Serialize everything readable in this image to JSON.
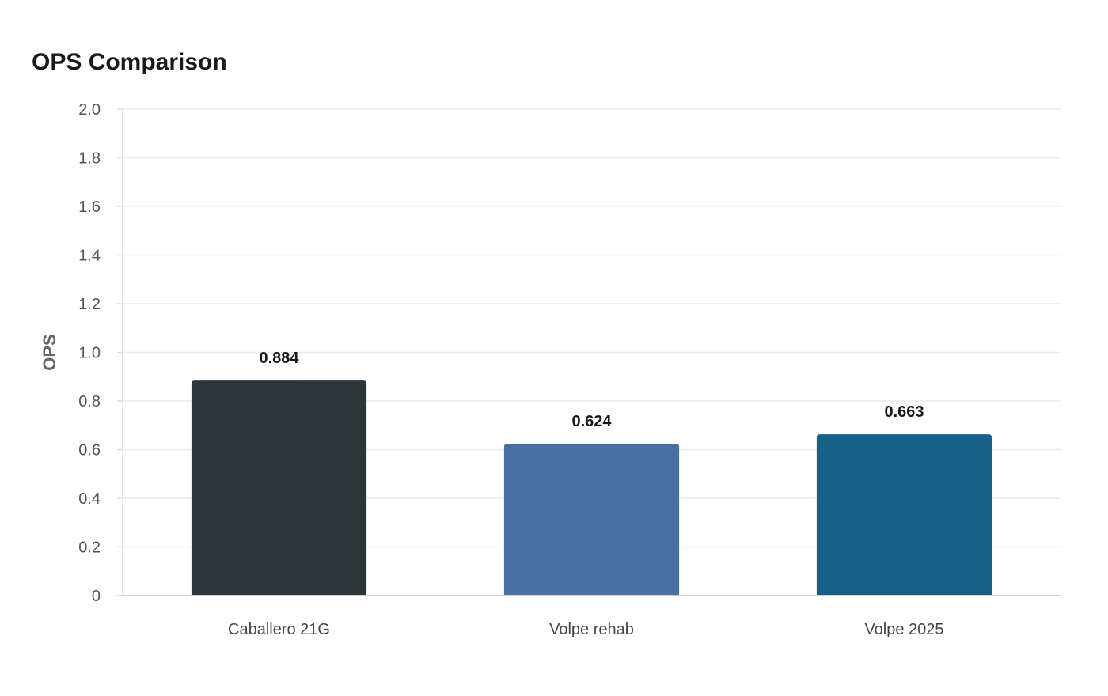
{
  "chart_data": {
    "type": "bar",
    "title": "OPS Comparison",
    "xlabel": "",
    "ylabel": "OPS",
    "ylim": [
      0,
      2.0
    ],
    "yticks": [
      0,
      0.2,
      0.4,
      0.6,
      0.8,
      1.0,
      1.2,
      1.4,
      1.6,
      1.8,
      2.0
    ],
    "ytick_labels": [
      "0",
      "0.2",
      "0.4",
      "0.6",
      "0.8",
      "1.0",
      "1.2",
      "1.4",
      "1.6",
      "1.8",
      "2.0"
    ],
    "categories": [
      "Caballero 21G",
      "Volpe rehab",
      "Volpe 2025"
    ],
    "values": [
      0.884,
      0.624,
      0.663
    ],
    "value_labels": [
      "0.884",
      "0.624",
      "0.663"
    ],
    "colors": [
      "#2e3538",
      "#4a6fa5",
      "#176189"
    ],
    "grid": true,
    "legend": "none"
  }
}
